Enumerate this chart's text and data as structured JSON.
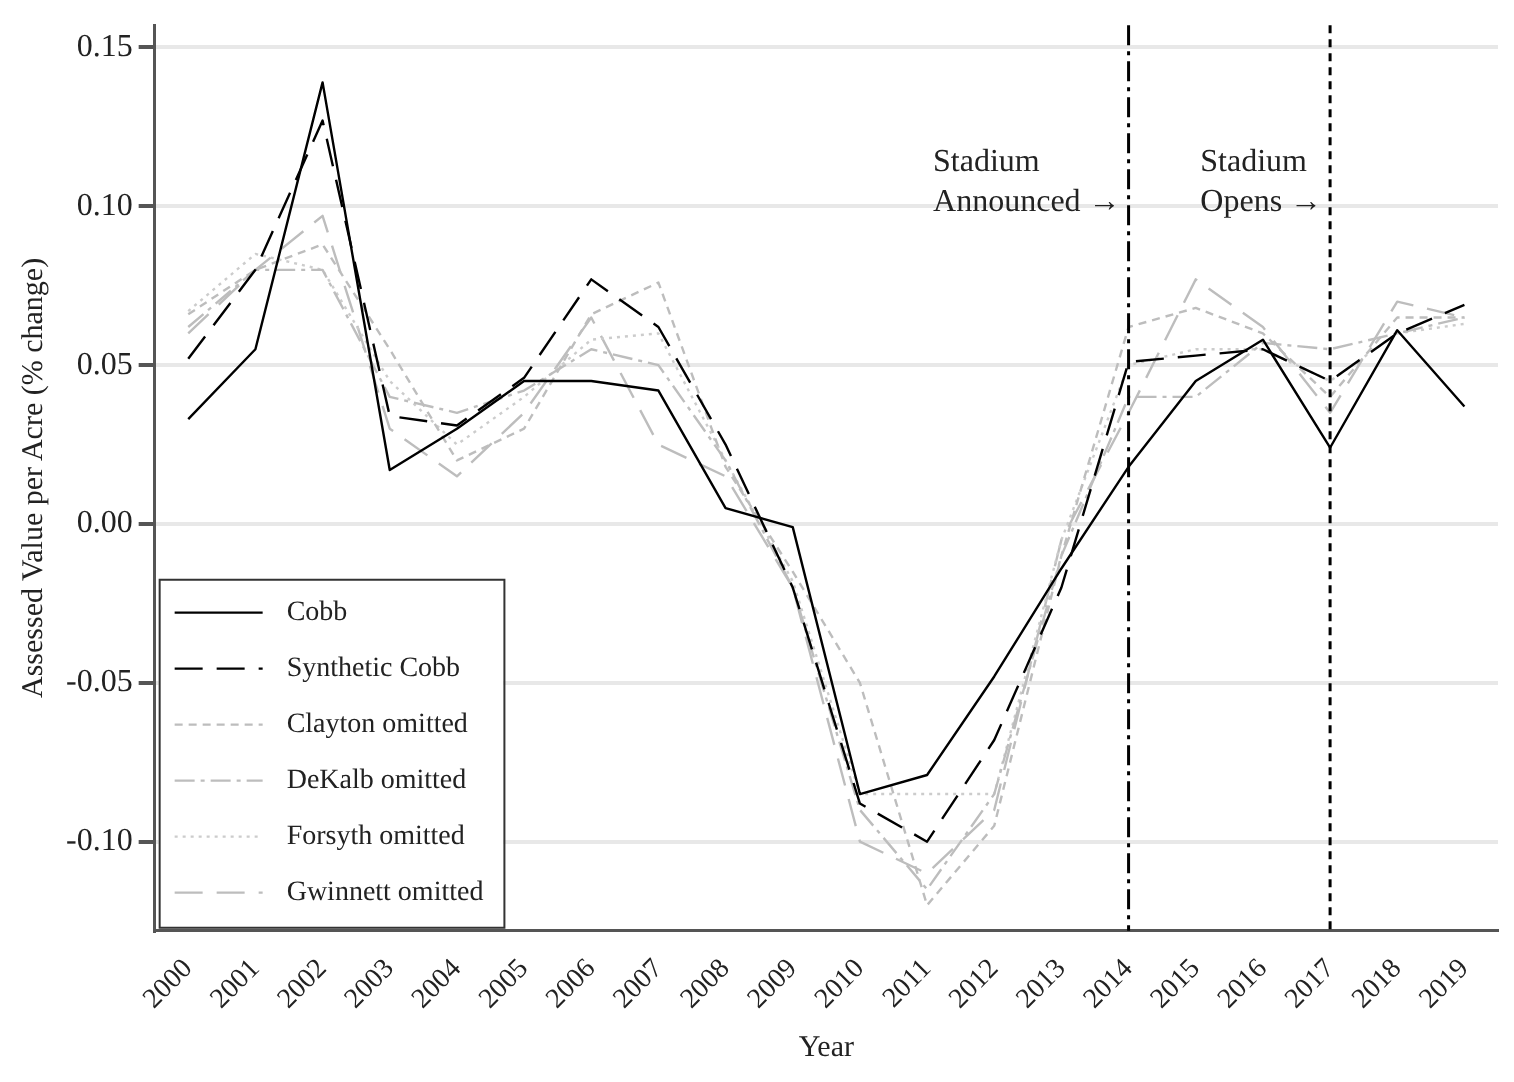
{
  "chart_data": {
    "type": "line",
    "xlabel": "Year",
    "ylabel": "Assessed Value per Acre (% change)",
    "categories": [
      "2000",
      "2001",
      "2002",
      "2003",
      "2004",
      "2005",
      "2006",
      "2007",
      "2008",
      "2009",
      "2010",
      "2011",
      "2012",
      "2013",
      "2014",
      "2015",
      "2016",
      "2017",
      "2018",
      "2019"
    ],
    "series": [
      {
        "name": "Cobb",
        "color": "#000000",
        "line_style": "solid",
        "values": [
          0.033,
          0.055,
          0.139,
          0.017,
          0.03,
          0.045,
          0.045,
          0.042,
          0.005,
          -0.001,
          -0.085,
          -0.079,
          -0.048,
          -0.014,
          0.018,
          0.045,
          0.058,
          0.024,
          0.061,
          0.037
        ]
      },
      {
        "name": "Synthetic Cobb",
        "color": "#000000",
        "line_style": "longdash",
        "values": [
          0.052,
          0.08,
          0.127,
          0.034,
          0.031,
          0.046,
          0.077,
          0.062,
          0.025,
          -0.02,
          -0.088,
          -0.1,
          -0.068,
          -0.02,
          0.051,
          0.053,
          0.055,
          0.045,
          0.06,
          0.069
        ]
      },
      {
        "name": "Clayton omitted",
        "color": "#bdbdbd",
        "line_style": "dashed",
        "values": [
          0.066,
          0.08,
          0.088,
          0.055,
          0.02,
          0.03,
          0.066,
          0.076,
          0.018,
          -0.015,
          -0.05,
          -0.12,
          -0.095,
          -0.01,
          0.062,
          0.068,
          0.06,
          0.04,
          0.065,
          0.065
        ]
      },
      {
        "name": "DeKalb omitted",
        "color": "#bdbdbd",
        "line_style": "dashdot",
        "values": [
          0.062,
          0.08,
          0.08,
          0.04,
          0.035,
          0.042,
          0.055,
          0.05,
          0.02,
          -0.02,
          -0.09,
          -0.115,
          -0.085,
          -0.01,
          0.04,
          0.04,
          0.057,
          0.055,
          0.06,
          0.065
        ]
      },
      {
        "name": "Forsyth omitted",
        "color": "#cccccc",
        "line_style": "dotted",
        "values": [
          0.067,
          0.085,
          0.08,
          0.045,
          0.025,
          0.04,
          0.058,
          0.06,
          0.02,
          -0.018,
          -0.085,
          -0.085,
          -0.085,
          -0.005,
          0.05,
          0.055,
          0.055,
          0.045,
          0.06,
          0.063
        ]
      },
      {
        "name": "Gwinnett omitted",
        "color": "#bdbdbd",
        "line_style": "longdash",
        "values": [
          0.06,
          0.08,
          0.097,
          0.03,
          0.015,
          0.035,
          0.065,
          0.025,
          0.015,
          -0.02,
          -0.1,
          -0.11,
          -0.09,
          -0.005,
          0.035,
          0.077,
          0.062,
          0.035,
          0.07,
          0.065
        ]
      }
    ],
    "ylim": [
      -0.128,
      0.157
    ],
    "yticks": [
      {
        "value": -0.1,
        "label": "-0.10"
      },
      {
        "value": -0.05,
        "label": "-0.05"
      },
      {
        "value": 0,
        "label": "0.00"
      },
      {
        "value": 0.05,
        "label": "0.05"
      },
      {
        "value": 0.1,
        "label": "0.10"
      },
      {
        "value": 0.15,
        "label": "0.15"
      }
    ],
    "grid": "y",
    "legend": "bottom left",
    "ref_lines": [
      {
        "axis": "x",
        "value": "2014",
        "label": "Stadium\nAnnounced →",
        "color": "#000000",
        "line_style": "dashdot"
      },
      {
        "axis": "x",
        "value": "2017",
        "label": "Stadium\nOpens →",
        "color": "#000000",
        "line_style": "dashed"
      }
    ]
  }
}
